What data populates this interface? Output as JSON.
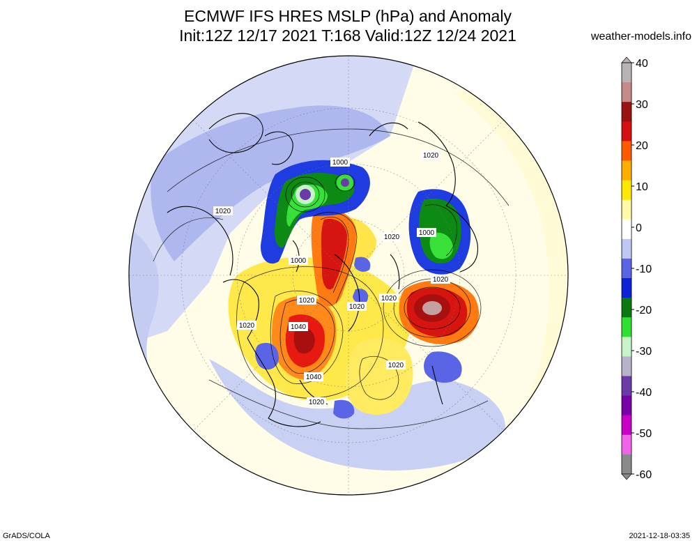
{
  "header": {
    "title_line1": "ECMWF IFS HRES MSLP (hPa) and Anomaly",
    "title_line2": "Init:12Z 12/17 2021 T:168 Valid:12Z 12/24 2021",
    "site": "weather-models.info"
  },
  "footer": {
    "software": "GrADS/COLA",
    "timestamp": "2021-12-18-03:35"
  },
  "colorbar": {
    "ticks": [
      "40",
      "30",
      "20",
      "10",
      "0",
      "-10",
      "-20",
      "-30",
      "-40",
      "-50",
      "-60"
    ],
    "colors": [
      "#b8b2b2",
      "#c48a8a",
      "#9a1212",
      "#d41010",
      "#ff5a00",
      "#ffae00",
      "#ffe800",
      "#fff9a8",
      "#ffffff",
      "#bfc8f4",
      "#5a64e6",
      "#0a22d8",
      "#0a7a10",
      "#2ee030",
      "#c8f2c8",
      "#b8b2ca",
      "#6a3aa8",
      "#7a00a8",
      "#c800c8",
      "#f064ec",
      "#8a8a8a"
    ]
  },
  "map": {
    "contour_labels": [
      {
        "text": "1000"
      },
      {
        "text": "1020"
      },
      {
        "text": "1020"
      },
      {
        "text": "1000"
      },
      {
        "text": "1020"
      },
      {
        "text": "1000"
      },
      {
        "text": "1020"
      },
      {
        "text": "1020"
      },
      {
        "text": "1020"
      },
      {
        "text": "1020"
      },
      {
        "text": "1020"
      },
      {
        "text": "1040"
      },
      {
        "text": "1020"
      },
      {
        "text": "1040"
      },
      {
        "text": "1020"
      }
    ]
  }
}
